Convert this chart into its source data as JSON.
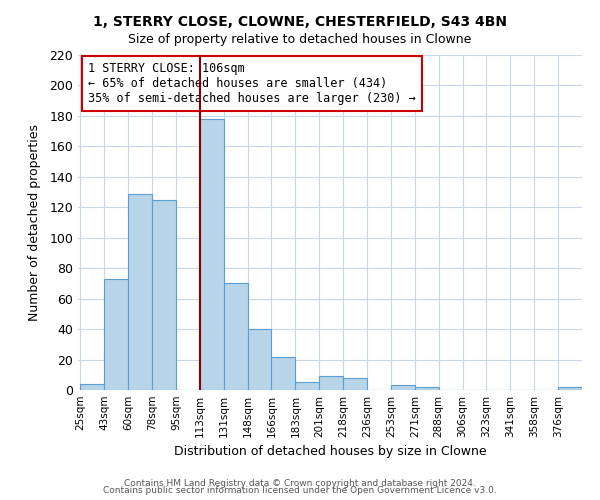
{
  "title": "1, STERRY CLOSE, CLOWNE, CHESTERFIELD, S43 4BN",
  "subtitle": "Size of property relative to detached houses in Clowne",
  "xlabel": "Distribution of detached houses by size in Clowne",
  "ylabel": "Number of detached properties",
  "footer_line1": "Contains HM Land Registry data © Crown copyright and database right 2024.",
  "footer_line2": "Contains public sector information licensed under the Open Government Licence v3.0.",
  "bin_labels": [
    "25sqm",
    "43sqm",
    "60sqm",
    "78sqm",
    "95sqm",
    "113sqm",
    "131sqm",
    "148sqm",
    "166sqm",
    "183sqm",
    "201sqm",
    "218sqm",
    "236sqm",
    "253sqm",
    "271sqm",
    "288sqm",
    "306sqm",
    "323sqm",
    "341sqm",
    "358sqm",
    "376sqm"
  ],
  "bin_counts": [
    4,
    73,
    129,
    125,
    0,
    178,
    70,
    40,
    22,
    5,
    9,
    8,
    0,
    3,
    2,
    0,
    0,
    0,
    0,
    0,
    2
  ],
  "bar_color": "#b8d4e8",
  "bar_edge_color": "#5a9fd4",
  "grid_color": "#c8d8e8",
  "background_color": "#ffffff",
  "ann_line1": "1 STERRY CLOSE: 106sqm",
  "ann_line2": "← 65% of detached houses are smaller (434)",
  "ann_line3": "35% of semi-detached houses are larger (230) →",
  "property_bar_index": 5,
  "ylim": [
    0,
    220
  ],
  "yticks": [
    0,
    20,
    40,
    60,
    80,
    100,
    120,
    140,
    160,
    180,
    200,
    220
  ]
}
